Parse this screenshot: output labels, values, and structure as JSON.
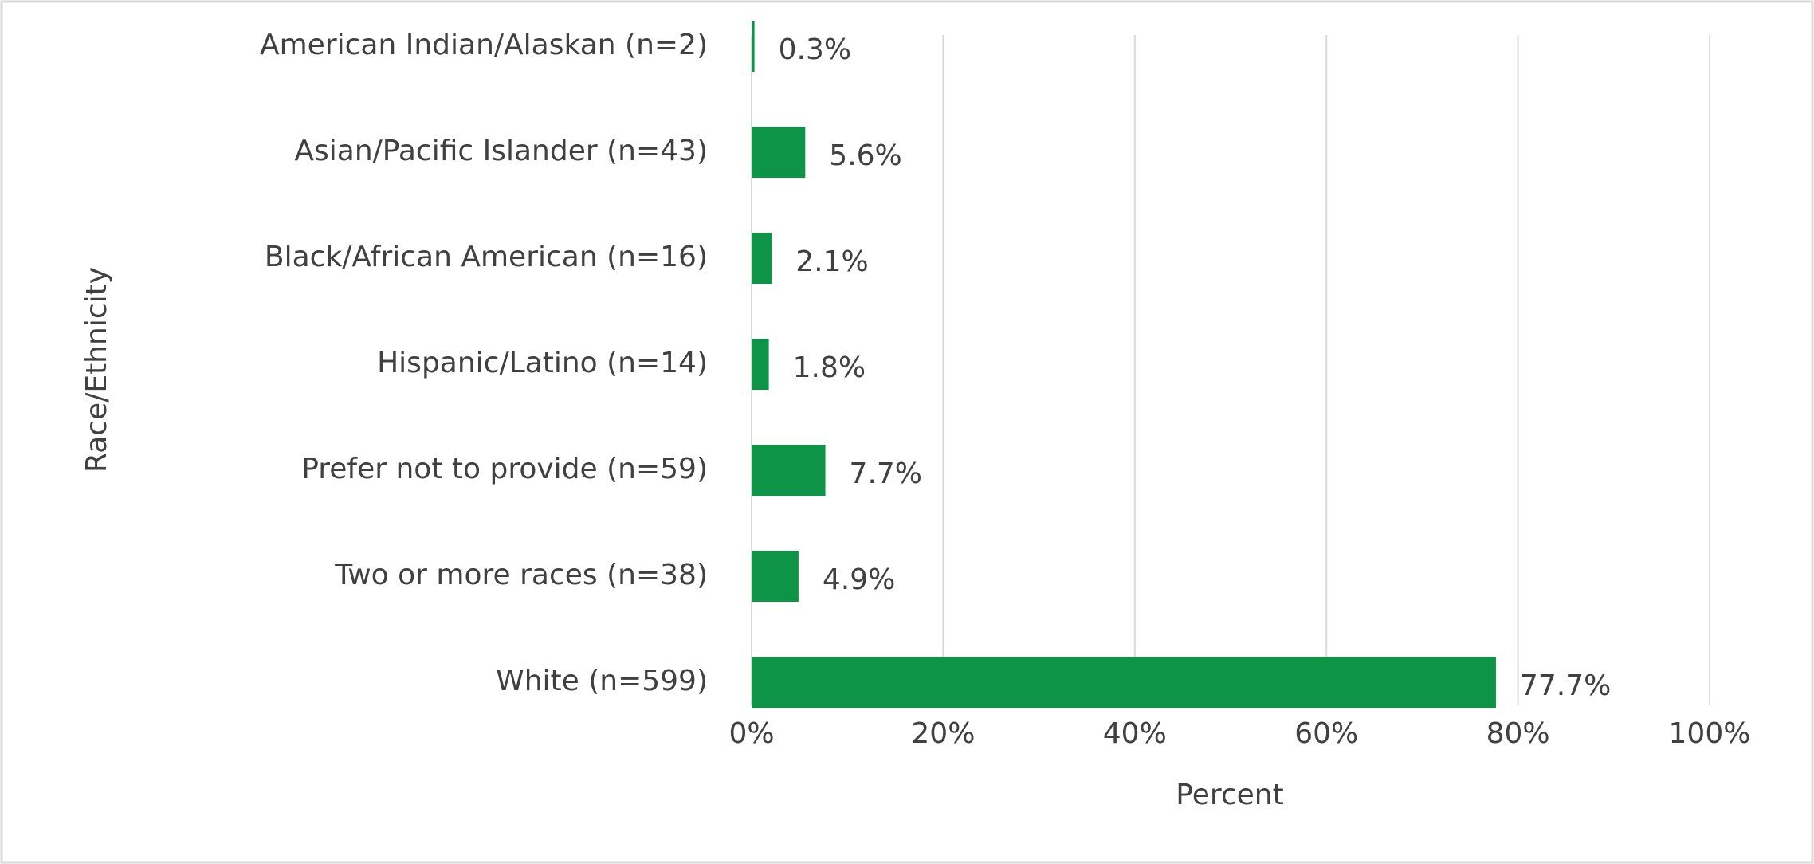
{
  "chart_data": {
    "type": "barh",
    "categories": [
      "American Indian/Alaskan (n=2)",
      "Asian/Pacific Islander (n=43)",
      "Black/African American (n=16)",
      "Hispanic/Latino (n=14)",
      "Prefer not to provide (n=59)",
      "Two or more races (n=38)",
      "White (n=599)"
    ],
    "values": [
      0.3,
      5.6,
      2.1,
      1.8,
      7.7,
      4.9,
      77.7
    ],
    "value_labels": [
      "0.3%",
      "5.6%",
      "2.1%",
      "1.8%",
      "7.7%",
      "4.9%",
      "77.7%"
    ],
    "color": "#0e9447",
    "xlabel": "Percent",
    "ylabel": "Race/Ethnicity",
    "xlim": [
      0,
      100
    ],
    "xticks": [
      {
        "value": 0,
        "label": "0%"
      },
      {
        "value": 20,
        "label": "20%"
      },
      {
        "value": 40,
        "label": "40%"
      },
      {
        "value": 60,
        "label": "60%"
      },
      {
        "value": 80,
        "label": "80%"
      },
      {
        "value": 100,
        "label": "100%"
      }
    ],
    "grid": true
  }
}
